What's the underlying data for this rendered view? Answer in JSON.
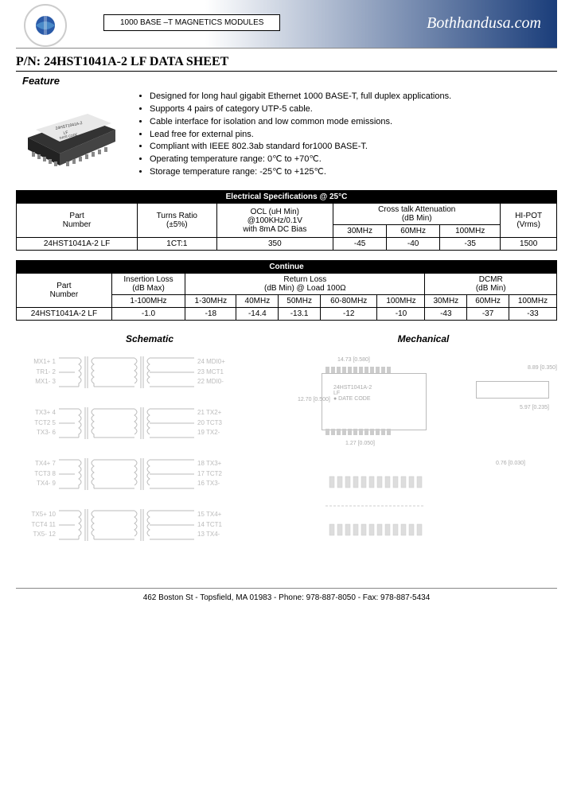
{
  "header": {
    "module_type": "1000 BASE –T MAGNETICS MODULES",
    "brand": "Bothhandusa.com"
  },
  "title": "P/N: 24HST1041A-2 LF DATA SHEET",
  "feature_label": "Feature",
  "chip_label": {
    "line1": "24HST1041A-2",
    "line2": "LF",
    "line3": "DATE CODE"
  },
  "features": [
    "Designed for long haul gigabit Ethernet 1000 BASE-T, full duplex applications.",
    "Supports 4 pairs of category UTP-5 cable.",
    "Cable interface for isolation and low common mode emissions.",
    "Lead free for external pins.",
    "Compliant with IEEE 802.3ab standard for1000 BASE-T.",
    "Operating temperature range: 0℃  to +70℃.",
    "Storage temperature range: -25℃  to +125℃."
  ],
  "spec_table1": {
    "title": "Electrical Specifications @ 25°C",
    "columns_top": [
      "Part Number",
      "Turns Ratio (±5%)",
      "OCL (uH Min) @100KHz/0.1V with 8mA DC Bias",
      "Cross talk Attenuation (dB Min)",
      "HI-POT (Vrms)"
    ],
    "crosstalk_sub": [
      "30MHz",
      "60MHz",
      "100MHz"
    ],
    "row": {
      "part": "24HST1041A-2 LF",
      "turns": "1CT:1",
      "ocl": "350",
      "ct30": "-45",
      "ct60": "-40",
      "ct100": "-35",
      "hipot": "1500"
    },
    "col_labels": {
      "part_l1": "Part",
      "part_l2": "Number",
      "turns_l1": "Turns Ratio",
      "turns_l2": "(±5%)",
      "ocl_l1": "OCL (uH Min)",
      "ocl_l2": "@100KHz/0.1V",
      "ocl_l3": "with 8mA DC Bias",
      "ct_l1": "Cross talk Attenuation",
      "ct_l2": "(dB Min)",
      "hipot_l1": "HI-POT",
      "hipot_l2": "(Vrms)"
    }
  },
  "spec_table2": {
    "title": "Continue",
    "col_labels": {
      "part_l1": "Part",
      "part_l2": "Number",
      "il_l1": "Insertion Loss",
      "il_l2": "(dB Max)",
      "rl_l1": "Return Loss",
      "rl_l2": "(dB Min) @ Load 100Ω",
      "dcmr_l1": "DCMR",
      "dcmr_l2": "(dB Min)"
    },
    "il_sub": "1-100MHz",
    "rl_sub": [
      "1-30MHz",
      "40MHz",
      "50MHz",
      "60-80MHz",
      "100MHz"
    ],
    "dcmr_sub": [
      "30MHz",
      "60MHz",
      "100MHz"
    ],
    "row": {
      "part": "24HST1041A-2 LF",
      "il": "-1.0",
      "rl1": "-18",
      "rl2": "-14.4",
      "rl3": "-13.1",
      "rl4": "-12",
      "rl5": "-10",
      "d1": "-43",
      "d2": "-37",
      "d3": "-33"
    }
  },
  "diagrams": {
    "schematic_title": "Schematic",
    "mechanical_title": "Mechanical",
    "schematic_pins": [
      {
        "left_a": "MX1+ 1",
        "left_b": "TR1- 2",
        "left_c": "MX1- 3",
        "right_a": "24 MDI0+",
        "right_b": "23 MCT1",
        "right_c": "22 MDI0-"
      },
      {
        "left_a": "TX3+ 4",
        "left_b": "TCT2 5",
        "left_c": "TX3- 6",
        "right_a": "21 TX2+",
        "right_b": "20 TCT3",
        "right_c": "19 TX2-"
      },
      {
        "left_a": "TX4+ 7",
        "left_b": "TCT3 8",
        "left_c": "TX4- 9",
        "right_a": "18 TX3+",
        "right_b": "17 TCT2",
        "right_c": "16 TX3-"
      },
      {
        "left_a": "TX5+ 10",
        "left_b": "TCT4 11",
        "left_c": "TX5- 12",
        "right_a": "15 TX4+",
        "right_b": "14 TCT1",
        "right_c": "13 TX4-"
      }
    ],
    "mech_dims": {
      "top": "14.73 [0.580]",
      "right": "8.89 [0.350]",
      "bottom": "1.27 [0.050]",
      "side_h": "5.97 [0.235]",
      "pin": "0.76 [0.030]",
      "width": "12.70 [0.500]"
    },
    "pkg_label": {
      "l1": "24HST1041A-2",
      "l2": "LF",
      "l3": "● DATE CODE"
    }
  },
  "footer": "462 Boston St - Topsfield, MA 01983 - Phone: 978-887-8050 - Fax: 978-887-5434",
  "colors": {
    "header_grad_start": "#ffffff",
    "header_grad_end": "#1a3d7a",
    "table_hdr_bg": "#000000",
    "table_hdr_fg": "#ffffff",
    "text": "#000000",
    "faint": "#aaaaaa"
  }
}
